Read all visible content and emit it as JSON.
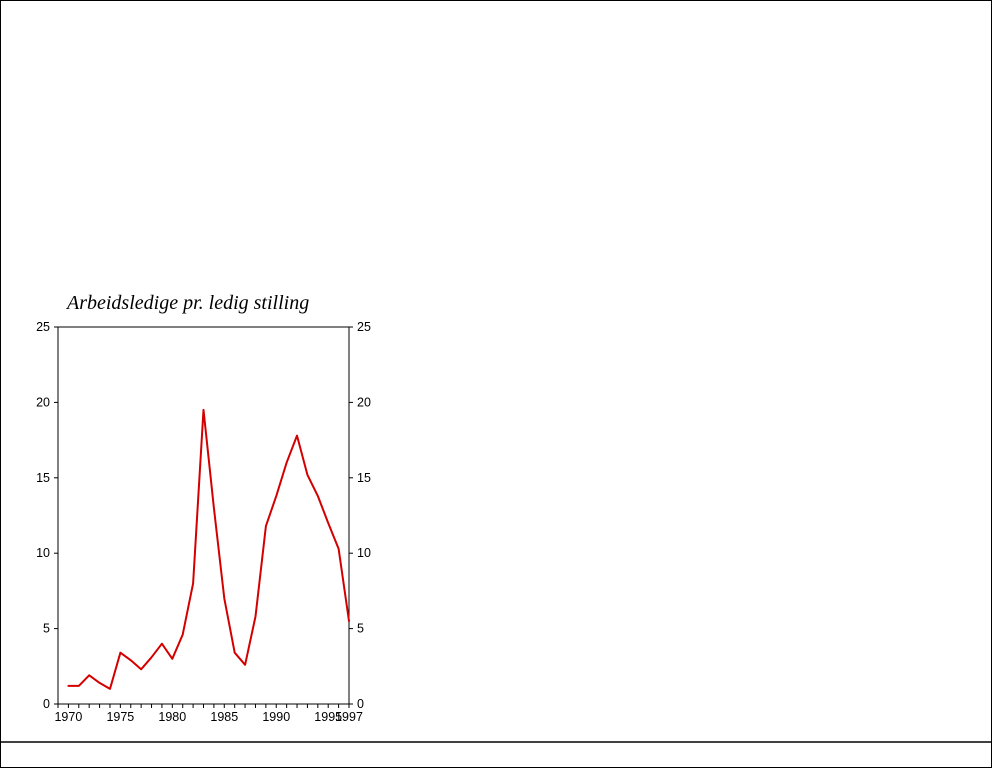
{
  "chart_data": {
    "type": "line",
    "title": "Arbeidsledige pr. ledig stilling",
    "xlabel": "",
    "ylabel": "",
    "xlim": [
      1969,
      1997
    ],
    "ylim": [
      0,
      25
    ],
    "y_ticks": [
      0,
      5,
      10,
      15,
      20,
      25
    ],
    "y_tick_labels": [
      "0",
      "5",
      "10",
      "15",
      "20",
      "25"
    ],
    "y_axis_labels_sides": [
      "left",
      "right"
    ],
    "x_minor_tick_step": 1,
    "x_tick_positions": [
      1970,
      1975,
      1980,
      1985,
      1990,
      1995,
      1997
    ],
    "x_tick_labels": [
      "1970",
      "1975",
      "1980",
      "1985",
      "1990",
      "1995",
      "1997"
    ],
    "grid": "off",
    "legend": "none",
    "series": [
      {
        "name": "Arbeidsledige pr. ledig stilling",
        "x": [
          1970,
          1971,
          1972,
          1973,
          1974,
          1975,
          1976,
          1977,
          1978,
          1979,
          1980,
          1981,
          1982,
          1983,
          1984,
          1985,
          1986,
          1987,
          1988,
          1989,
          1990,
          1991,
          1992,
          1993,
          1994,
          1995,
          1996,
          1997
        ],
        "values": [
          1.2,
          1.2,
          1.9,
          1.4,
          1.0,
          3.4,
          2.9,
          2.3,
          3.1,
          4.0,
          3.0,
          4.6,
          8.0,
          19.5,
          13.0,
          7.0,
          3.4,
          2.6,
          5.8,
          11.8,
          13.8,
          16.0,
          17.8,
          15.2,
          13.8,
          12.0,
          10.3,
          5.5
        ]
      }
    ],
    "line_color": "#d40000",
    "axis_color": "#000000"
  },
  "page": {
    "footer_rule": "rule"
  }
}
